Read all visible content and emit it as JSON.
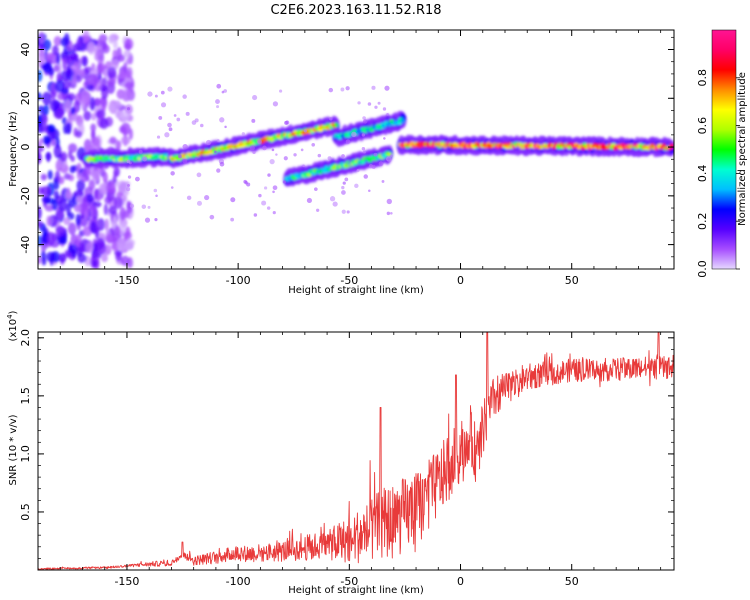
{
  "title": "C2E6.2023.163.11.52.R18",
  "colors": {
    "snr_line": "#e83a3a",
    "frame": "#000000",
    "colorbar_stops": [
      "#e6d9ff",
      "#a64dff",
      "#5500ff",
      "#0000ff",
      "#00bfff",
      "#00ffd0",
      "#00ff00",
      "#b0ff00",
      "#ffff00",
      "#ff8c00",
      "#ff0000",
      "#ff0066",
      "#ff1493"
    ]
  },
  "chart_data": [
    {
      "type": "heatmap",
      "name": "spectrogram",
      "xlabel": "Height of straight line (km)",
      "ylabel": "Frequency (Hz)",
      "xlim": [
        -190,
        96
      ],
      "ylim": [
        -50,
        48
      ],
      "xticks": [
        -150,
        -100,
        -50,
        0,
        50
      ],
      "yticks": [
        -40,
        -20,
        0,
        20,
        40
      ],
      "colorbar": {
        "label": "Normalized spectral amplitude",
        "range": [
          0,
          1
        ],
        "ticks": [
          "0.0",
          "0.2",
          "0.4",
          "0.6",
          "0.8"
        ]
      },
      "features": [
        {
          "x_start": -190,
          "x_end": -148,
          "y_min": -48,
          "y_max": 46,
          "amplitude": 0.15
        },
        {
          "x_start": -168,
          "x_end": -130,
          "y_start": -5,
          "y_end": -4,
          "amplitude": 0.6
        },
        {
          "x_start": -130,
          "x_end": -56,
          "y_start": -5,
          "y_end": 9,
          "amplitude": 0.75
        },
        {
          "x_start": -78,
          "x_end": -32,
          "y_start": -13,
          "y_end": -3,
          "amplitude": 0.55
        },
        {
          "x_start": -56,
          "x_end": -26,
          "y_start": 4,
          "y_end": 11,
          "amplitude": 0.45
        },
        {
          "x_start": -27,
          "x_end": 95,
          "y_start": 1,
          "y_end": 0,
          "amplitude": 0.95
        }
      ]
    },
    {
      "type": "line",
      "name": "snr",
      "xlabel": "Height of straight line (km)",
      "ylabel": "SNR (10 * v/v)",
      "yscale_note": "(x10",
      "yscale_exp": "4",
      "yscale_close": ")",
      "xlim": [
        -190,
        96
      ],
      "ylim": [
        0,
        2.05
      ],
      "xticks": [
        -150,
        -100,
        -50,
        0,
        50
      ],
      "yticks": [
        "0.5",
        "1.0",
        "1.5",
        "2.0"
      ],
      "trend": {
        "x": [
          -190,
          -160,
          -140,
          -130,
          -125,
          -120,
          -110,
          -100,
          -95,
          -80,
          -60,
          -50,
          -45,
          -40,
          -35,
          -30,
          -25,
          -20,
          -15,
          -10,
          -5,
          0,
          5,
          8,
          10,
          12,
          15,
          20,
          25,
          30,
          40,
          50,
          60,
          70,
          80,
          90,
          96
        ],
        "y": [
          0.01,
          0.02,
          0.05,
          0.06,
          0.15,
          0.08,
          0.11,
          0.15,
          0.14,
          0.16,
          0.22,
          0.26,
          0.3,
          0.34,
          0.4,
          0.42,
          0.48,
          0.52,
          0.62,
          0.75,
          0.9,
          1.02,
          1.1,
          0.95,
          1.22,
          1.3,
          1.48,
          1.55,
          1.62,
          1.66,
          1.7,
          1.72,
          1.72,
          1.73,
          1.74,
          1.74,
          1.75
        ]
      },
      "noise_amplitude": {
        "x": [
          -190,
          -150,
          -120,
          -100,
          -80,
          -60,
          -40,
          -30,
          -20,
          -10,
          0,
          10,
          20,
          40,
          96
        ],
        "y": [
          0.005,
          0.01,
          0.04,
          0.07,
          0.09,
          0.13,
          0.28,
          0.33,
          0.32,
          0.3,
          0.28,
          0.24,
          0.14,
          0.1,
          0.1
        ]
      },
      "peaks": [
        {
          "x": -125,
          "y": 0.24
        },
        {
          "x": -36,
          "y": 1.4
        },
        {
          "x": -2,
          "y": 1.68
        },
        {
          "x": 12,
          "y": 2.05
        },
        {
          "x": 89,
          "y": 2.05
        }
      ]
    }
  ]
}
